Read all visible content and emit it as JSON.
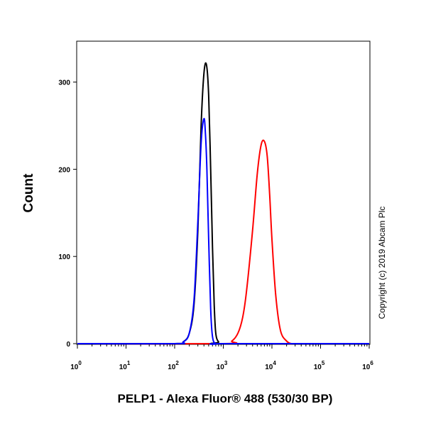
{
  "chart_data": {
    "type": "line",
    "xlabel": "PELP1 - Alexa Fluor® 488 (530/30 BP)",
    "ylabel": "Count",
    "x_scale": "log",
    "xlim": [
      1,
      1000000
    ],
    "ylim": [
      0,
      340
    ],
    "x_ticks": [
      {
        "base": "10",
        "exp": "0",
        "value": 1
      },
      {
        "base": "10",
        "exp": "1",
        "value": 10
      },
      {
        "base": "10",
        "exp": "2",
        "value": 100
      },
      {
        "base": "10",
        "exp": "3",
        "value": 1000
      },
      {
        "base": "10",
        "exp": "4",
        "value": 10000
      },
      {
        "base": "10",
        "exp": "5",
        "value": 100000
      },
      {
        "base": "10",
        "exp": "6",
        "value": 1000000
      }
    ],
    "y_ticks": [
      {
        "label": "0",
        "value": 0
      },
      {
        "label": "100",
        "value": 100
      },
      {
        "label": "200",
        "value": 200
      },
      {
        "label": "300",
        "value": 300
      }
    ],
    "series": [
      {
        "color": "#000000",
        "x": [
          1,
          100,
          150,
          200,
          250,
          300,
          350,
          400,
          450,
          500,
          550,
          600,
          650,
          700,
          800,
          1000,
          1000000
        ],
        "values": [
          0,
          0,
          2,
          12,
          45,
          130,
          250,
          310,
          320,
          285,
          200,
          110,
          45,
          12,
          2,
          0,
          0
        ]
      },
      {
        "color": "#0000ff",
        "x": [
          1,
          100,
          150,
          200,
          250,
          300,
          350,
          400,
          430,
          460,
          500,
          550,
          600,
          700,
          1000,
          1000000
        ],
        "values": [
          0,
          0,
          2,
          12,
          50,
          140,
          230,
          258,
          240,
          200,
          120,
          40,
          8,
          0,
          0,
          0
        ]
      },
      {
        "color": "#ff0000",
        "x": [
          1,
          1000,
          1500,
          2000,
          2500,
          3000,
          4000,
          5000,
          6000,
          7000,
          8000,
          9000,
          10000,
          12000,
          15000,
          20000,
          25000,
          30000,
          1000000
        ],
        "values": [
          0,
          0,
          3,
          12,
          30,
          60,
          130,
          195,
          228,
          232,
          215,
          170,
          120,
          55,
          15,
          3,
          0,
          0,
          0
        ]
      }
    ]
  },
  "copyright": "Copyright (c) 2019 Abcam Plc"
}
